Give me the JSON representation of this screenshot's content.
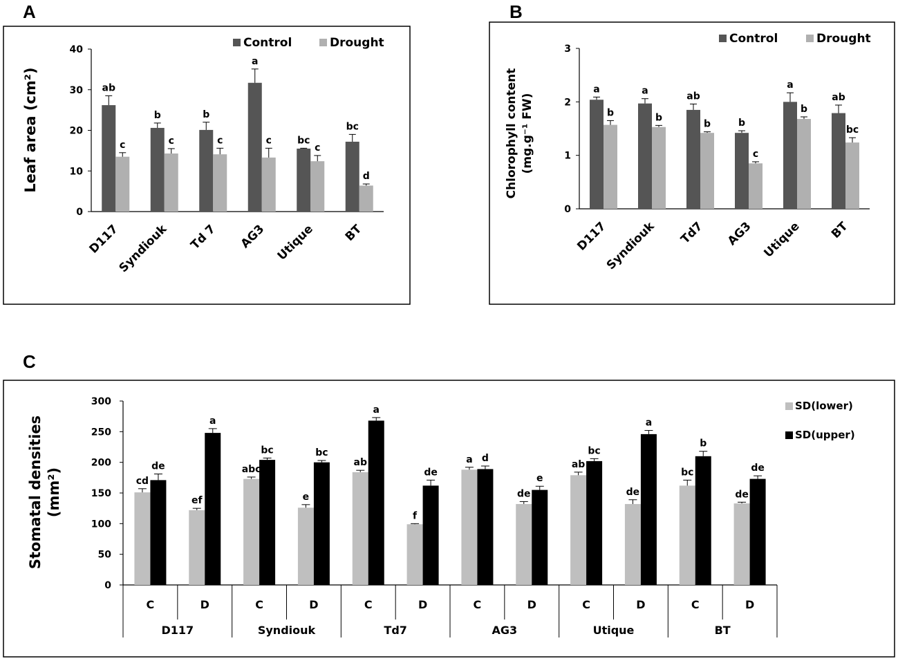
{
  "panels": {
    "a": "A",
    "b": "B",
    "c": "C"
  },
  "colors": {
    "control": "#555555",
    "drought": "#b0b0b0",
    "sd_lower": "#bfbfbf",
    "sd_upper": "#000000"
  },
  "chart_data": [
    {
      "type": "bar",
      "id": "A",
      "title": "",
      "ylabel": "Leaf area (cm²)",
      "xlabel": "",
      "ylim": [
        0,
        40
      ],
      "yticks": [
        "0",
        "10",
        "20",
        "30",
        "40"
      ],
      "categories": [
        "D117",
        "Syndiouk",
        "Td 7",
        "AG3",
        "Utique",
        "BT"
      ],
      "legend": [
        "Control",
        "Drought"
      ],
      "series": [
        {
          "name": "Control",
          "values": [
            26.2,
            20.6,
            20.1,
            31.7,
            15.5,
            17.2
          ],
          "errors": [
            2.3,
            1.2,
            1.9,
            3.4,
            0.1,
            1.8
          ],
          "labels": [
            "ab",
            "b",
            "b",
            "a",
            "bc",
            "bc"
          ]
        },
        {
          "name": "Drought",
          "values": [
            13.5,
            14.3,
            14.1,
            13.3,
            12.4,
            6.4
          ],
          "errors": [
            1.0,
            1.2,
            1.5,
            2.3,
            1.4,
            0.4
          ],
          "labels": [
            "c",
            "c",
            "c",
            "c",
            "c",
            "d"
          ]
        }
      ]
    },
    {
      "type": "bar",
      "id": "B",
      "title": "",
      "ylabel": "Chlorophyll content",
      "ylabel2": "(mg.g⁻¹ FW)",
      "xlabel": "",
      "ylim": [
        0,
        3
      ],
      "yticks": [
        "0",
        "1",
        "2",
        "3"
      ],
      "categories": [
        "D117",
        "Syndiouk",
        "Td7",
        "AG3",
        "Utique",
        "BT"
      ],
      "legend": [
        "Control",
        "Drought"
      ],
      "series": [
        {
          "name": "Control",
          "values": [
            2.04,
            1.97,
            1.85,
            1.42,
            2.0,
            1.79
          ],
          "errors": [
            0.05,
            0.09,
            0.11,
            0.04,
            0.17,
            0.15
          ],
          "labels": [
            "a",
            "a",
            "ab",
            "b",
            "a",
            "ab"
          ]
        },
        {
          "name": "Drought",
          "values": [
            1.57,
            1.53,
            1.42,
            0.85,
            1.68,
            1.24
          ],
          "errors": [
            0.08,
            0.03,
            0.02,
            0.03,
            0.04,
            0.09
          ],
          "labels": [
            "b",
            "b",
            "b",
            "c",
            "b",
            "bc"
          ]
        }
      ]
    },
    {
      "type": "bar",
      "id": "C",
      "title": "",
      "ylabel": "Stomatal densities",
      "ylabel2": "(mm²)",
      "xlabel": "",
      "ylim": [
        0,
        300
      ],
      "yticks": [
        "0",
        "50",
        "100",
        "150",
        "200",
        "250",
        "300"
      ],
      "groups": [
        "D117",
        "Syndiouk",
        "Td7",
        "AG3",
        "Utique",
        "BT"
      ],
      "subcategories": [
        "C",
        "D"
      ],
      "legend": [
        "SD(lower)",
        "SD(upper)"
      ],
      "series": [
        {
          "name": "SD(lower)",
          "values": [
            151,
            122,
            173,
            126,
            184,
            99,
            188,
            132,
            179,
            132,
            162,
            133
          ],
          "errors": [
            6,
            3,
            3,
            5,
            3,
            1,
            4,
            4,
            5,
            7,
            9,
            2
          ],
          "labels": [
            "cd",
            "ef",
            "abc",
            "e",
            "ab",
            "f",
            "a",
            "de",
            "ab",
            "de",
            "bc",
            "de"
          ]
        },
        {
          "name": "SD(upper)",
          "values": [
            171,
            248,
            204,
            200,
            268,
            162,
            189,
            155,
            202,
            246,
            210,
            173
          ],
          "errors": [
            10,
            7,
            3,
            3,
            5,
            9,
            5,
            6,
            4,
            6,
            8,
            5
          ],
          "labels": [
            "de",
            "a",
            "bc",
            "bc",
            "a",
            "de",
            "d",
            "e",
            "bc",
            "a",
            "b",
            "de"
          ]
        }
      ]
    }
  ]
}
